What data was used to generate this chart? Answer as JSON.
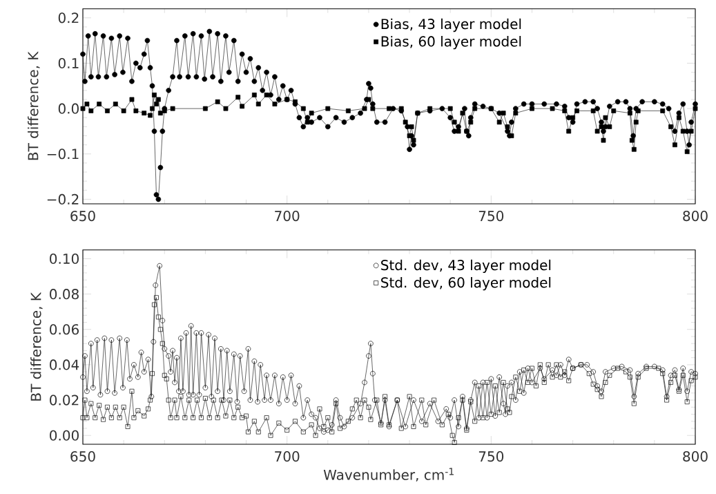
{
  "chart_data": [
    {
      "type": "line",
      "ylabel": "BT difference, K",
      "xlim": [
        650,
        800
      ],
      "xticks": [
        650,
        700,
        750,
        800
      ],
      "ylim": [
        -0.21,
        0.22
      ],
      "yticks": [
        {
          "value": -0.2,
          "label": "−0.2"
        },
        {
          "value": -0.1,
          "label": "−0.1"
        },
        {
          "value": 0,
          "label": "0.0"
        },
        {
          "value": 0.1,
          "label": "0.1"
        },
        {
          "value": 0.2,
          "label": "0.2"
        }
      ],
      "legend": "top",
      "grid": false,
      "line_style": "solid",
      "series": [
        {
          "name": "Bias, 43 layer model",
          "color": "#000000",
          "marker": "circle",
          "x": [
            650,
            650.5,
            651.3,
            652,
            653,
            653.8,
            655,
            655.8,
            657,
            657.8,
            659,
            659.8,
            661,
            662,
            663,
            664,
            665,
            665.8,
            666.5,
            667,
            667.5,
            668,
            668.5,
            669,
            669.5,
            670,
            671,
            672,
            673,
            673.7,
            675,
            675.8,
            677,
            677.8,
            679,
            679.8,
            681,
            681.8,
            683,
            683.8,
            685,
            685.8,
            687,
            688,
            689,
            690,
            691,
            692,
            693,
            694,
            695,
            696,
            697,
            698,
            699,
            700,
            701,
            702,
            703,
            704,
            705,
            706,
            708,
            710,
            712,
            714,
            716,
            718,
            719.5,
            720,
            720.5,
            721,
            722,
            724,
            726,
            728,
            729.5,
            730,
            730.5,
            731,
            732,
            735,
            738,
            740,
            741,
            742,
            743.5,
            744,
            744.5,
            745,
            746,
            748,
            750,
            752,
            754,
            754.5,
            755,
            756,
            758,
            760,
            763,
            766,
            768,
            769,
            770,
            771,
            773,
            775,
            776,
            777,
            777.5,
            778,
            779,
            781,
            783,
            784,
            784.8,
            785.5,
            787,
            790,
            792,
            793.5,
            795,
            796,
            797,
            798,
            798.5,
            799,
            800
          ],
          "values": [
            0.12,
            0.06,
            0.16,
            0.07,
            0.165,
            0.07,
            0.16,
            0.07,
            0.155,
            0.075,
            0.16,
            0.08,
            0.155,
            0.06,
            0.1,
            0.09,
            0.12,
            0.15,
            0.09,
            0.05,
            -0.05,
            -0.19,
            -0.2,
            -0.13,
            -0.05,
            0.0,
            0.04,
            0.07,
            0.15,
            0.07,
            0.16,
            0.07,
            0.165,
            0.07,
            0.16,
            0.065,
            0.17,
            0.07,
            0.165,
            0.06,
            0.16,
            0.08,
            0.15,
            0.06,
            0.12,
            0.08,
            0.11,
            0.06,
            0.09,
            0.04,
            0.08,
            0.03,
            0.07,
            0.02,
            0.05,
            0.02,
            0.04,
            0.01,
            -0.02,
            -0.04,
            -0.02,
            -0.03,
            -0.02,
            -0.04,
            -0.02,
            -0.03,
            -0.02,
            -0.01,
            0.02,
            0.055,
            0.045,
            0.01,
            -0.03,
            -0.03,
            0.0,
            -0.005,
            -0.04,
            -0.09,
            -0.06,
            -0.08,
            -0.01,
            -0.005,
            0.0,
            -0.02,
            -0.05,
            -0.04,
            0.0,
            -0.05,
            -0.06,
            -0.02,
            0.01,
            0.005,
            0.0,
            -0.01,
            -0.05,
            -0.06,
            -0.03,
            0.0,
            0.01,
            0.01,
            0.01,
            0.01,
            0.005,
            -0.02,
            -0.03,
            0.01,
            0.015,
            0.015,
            0.0,
            -0.03,
            -0.05,
            -0.04,
            0.005,
            0.015,
            0.015,
            0.0,
            -0.06,
            0.0,
            0.015,
            0.015,
            0.01,
            0.0,
            -0.05,
            -0.01,
            0.01,
            -0.05,
            -0.08,
            -0.03,
            0.01
          ]
        },
        {
          "name": "Bias, 60 layer model",
          "color": "#000000",
          "marker": "square",
          "x": [
            650,
            651,
            652,
            654,
            656,
            658,
            660,
            662,
            663,
            665,
            666.5,
            667,
            667.5,
            668,
            668.5,
            669,
            670,
            672,
            680,
            683,
            685,
            688,
            689,
            692,
            693,
            695,
            697,
            700,
            702,
            704,
            705,
            706,
            710,
            715,
            719,
            720,
            721,
            725,
            728,
            729,
            730,
            730.5,
            731,
            732,
            735,
            740,
            741,
            742,
            743,
            744,
            745,
            746,
            750,
            752,
            753,
            754,
            755,
            756,
            760,
            765,
            768,
            769,
            770,
            771,
            775,
            776,
            777,
            777.5,
            778,
            779,
            780,
            784,
            784.5,
            785,
            785.5,
            786,
            792,
            794,
            795,
            796,
            797,
            798,
            799,
            800
          ],
          "values": [
            0.0,
            0.01,
            -0.005,
            0.01,
            -0.005,
            0.01,
            -0.005,
            0.02,
            -0.005,
            -0.01,
            -0.015,
            0.0,
            0.03,
            0.01,
            0.02,
            -0.01,
            -0.005,
            0.0,
            0.0,
            0.015,
            0.0,
            0.025,
            0.005,
            0.03,
            0.01,
            0.03,
            0.01,
            0.02,
            0.015,
            0.0,
            -0.03,
            -0.01,
            0.0,
            -0.005,
            0.0,
            0.02,
            0.0,
            0.0,
            0.0,
            -0.03,
            -0.06,
            -0.04,
            -0.07,
            -0.01,
            0.0,
            0.0,
            -0.03,
            -0.05,
            -0.01,
            -0.05,
            -0.03,
            0.0,
            0.0,
            -0.03,
            -0.01,
            -0.04,
            -0.06,
            -0.01,
            0.0,
            0.0,
            -0.005,
            -0.05,
            -0.02,
            -0.005,
            -0.005,
            -0.05,
            -0.04,
            -0.07,
            -0.02,
            -0.04,
            -0.005,
            -0.01,
            -0.07,
            -0.09,
            -0.03,
            -0.005,
            -0.005,
            -0.04,
            -0.08,
            -0.02,
            -0.05,
            -0.095,
            -0.05,
            0.0
          ]
        }
      ]
    },
    {
      "type": "line",
      "xlabel": "Wavenumber, cm$^{-1}$",
      "ylabel": "BT difference, K",
      "xlim": [
        650,
        800
      ],
      "xticks": [
        650,
        700,
        750,
        800
      ],
      "ylim": [
        -0.005,
        0.105
      ],
      "yticks": [
        {
          "value": 0,
          "label": "0.00"
        },
        {
          "value": 0.02,
          "label": "0.02"
        },
        {
          "value": 0.04,
          "label": "0.04"
        },
        {
          "value": 0.06,
          "label": "0.06"
        },
        {
          "value": 0.08,
          "label": "0.08"
        },
        {
          "value": 0.1,
          "label": "0.10"
        }
      ],
      "legend": "top",
      "grid": false,
      "line_style": "solid",
      "series": [
        {
          "name": "Std. dev, 43 layer model",
          "color": "#000000",
          "marker": "circle",
          "x": [
            650,
            650.5,
            651,
            652,
            652.5,
            653.5,
            654.3,
            655.3,
            656,
            657,
            657.8,
            659,
            659.8,
            660.8,
            661.5,
            662.5,
            663.5,
            664.3,
            665,
            666,
            666.8,
            667.3,
            667.8,
            668.8,
            669.5,
            670,
            671,
            671.5,
            672,
            672.5,
            673,
            673.5,
            674,
            674.5,
            675.3,
            676,
            676.5,
            677,
            677.8,
            678.5,
            679,
            680,
            680.8,
            681.5,
            682.3,
            683,
            683.8,
            684.5,
            685.3,
            686,
            687,
            687.8,
            688.5,
            689.5,
            690.5,
            691,
            692,
            692.8,
            693.5,
            694.5,
            695,
            696,
            697,
            698,
            699,
            700,
            701,
            702,
            703,
            704,
            705,
            706,
            707,
            708,
            709,
            710,
            711,
            712,
            713,
            714,
            716,
            718,
            719,
            720,
            720.5,
            721,
            721.5,
            723,
            724,
            725,
            727,
            729,
            731,
            733,
            735,
            737,
            739,
            740,
            741,
            742,
            743,
            744,
            745,
            746,
            747,
            748,
            749,
            750,
            751,
            752,
            753,
            753.5,
            754,
            755,
            756,
            757,
            758,
            759,
            760,
            762,
            763,
            765,
            766,
            767,
            768,
            769,
            770,
            772,
            773.5,
            775,
            776,
            777,
            778,
            780,
            782,
            784,
            785,
            786,
            788,
            790,
            792,
            793,
            794,
            795,
            796,
            797,
            798,
            799,
            800
          ],
          "values": [
            0.033,
            0.045,
            0.025,
            0.052,
            0.027,
            0.054,
            0.023,
            0.055,
            0.025,
            0.054,
            0.024,
            0.055,
            0.027,
            0.054,
            0.032,
            0.04,
            0.033,
            0.047,
            0.036,
            0.043,
            0.022,
            0.053,
            0.085,
            0.096,
            0.065,
            0.049,
            0.045,
            0.036,
            0.048,
            0.03,
            0.044,
            0.025,
            0.055,
            0.025,
            0.058,
            0.023,
            0.062,
            0.023,
            0.058,
            0.023,
            0.058,
            0.027,
            0.057,
            0.022,
            0.055,
            0.025,
            0.049,
            0.02,
            0.048,
            0.025,
            0.046,
            0.019,
            0.045,
            0.025,
            0.049,
            0.02,
            0.042,
            0.019,
            0.04,
            0.02,
            0.034,
            0.02,
            0.034,
            0.018,
            0.033,
            0.02,
            0.034,
            0.018,
            0.028,
            0.01,
            0.02,
            0.012,
            0.01,
            0.004,
            0.002,
            0.003,
            0.006,
            0.02,
            0.01,
            0.005,
            0.01,
            0.018,
            0.03,
            0.045,
            0.052,
            0.035,
            0.02,
            0.007,
            0.02,
            0.005,
            0.02,
            0.005,
            0.02,
            0.008,
            0.018,
            0.008,
            0.015,
            0.01,
            0.02,
            0.005,
            0.022,
            0.004,
            0.02,
            0.03,
            0.01,
            0.03,
            0.01,
            0.032,
            0.011,
            0.033,
            0.018,
            0.012,
            0.028,
            0.03,
            0.02,
            0.036,
            0.024,
            0.038,
            0.03,
            0.038,
            0.032,
            0.037,
            0.034,
            0.04,
            0.034,
            0.043,
            0.038,
            0.04,
            0.04,
            0.036,
            0.028,
            0.025,
            0.036,
            0.038,
            0.039,
            0.037,
            0.022,
            0.035,
            0.039,
            0.039,
            0.037,
            0.022,
            0.034,
            0.037,
            0.026,
            0.038,
            0.025,
            0.036,
            0.035
          ]
        },
        {
          "name": "Std. dev, 60 layer model",
          "color": "#000000",
          "marker": "square",
          "x": [
            650,
            650.5,
            651,
            652,
            653,
            654,
            655,
            656,
            657,
            658,
            659,
            660,
            661,
            662,
            662.5,
            663.5,
            665,
            666,
            666.5,
            667,
            667.5,
            668,
            668.5,
            669,
            669.5,
            670,
            670.5,
            671,
            671.5,
            672.5,
            673,
            674,
            675,
            676,
            677,
            678,
            679,
            680,
            681,
            682,
            683,
            684,
            685,
            686,
            687,
            688,
            689,
            690,
            690.5,
            692,
            693,
            695,
            696,
            698,
            700,
            702,
            704,
            706,
            707,
            708,
            709,
            710,
            711,
            712,
            713,
            715,
            716,
            717,
            718,
            719,
            720,
            720.5,
            722,
            723,
            724,
            725,
            727,
            728,
            730,
            731,
            733,
            734,
            736,
            738,
            739.5,
            740.5,
            741,
            742,
            743,
            744,
            745,
            746,
            747,
            748,
            749,
            750,
            751,
            752,
            753,
            754,
            754.5,
            755,
            756,
            757,
            758,
            759,
            760,
            761,
            762,
            763,
            764,
            765,
            766,
            767,
            768,
            769,
            770,
            772,
            774,
            775,
            776,
            777,
            778,
            779,
            781,
            783,
            784,
            785,
            786,
            788,
            791,
            792,
            793,
            794,
            795,
            796,
            797,
            798,
            799,
            800
          ],
          "values": [
            0.01,
            0.02,
            0.01,
            0.018,
            0.01,
            0.017,
            0.009,
            0.016,
            0.01,
            0.016,
            0.01,
            0.016,
            0.005,
            0.025,
            0.01,
            0.014,
            0.011,
            0.015,
            0.02,
            0.035,
            0.074,
            0.078,
            0.067,
            0.06,
            0.052,
            0.034,
            0.032,
            0.02,
            0.01,
            0.02,
            0.01,
            0.022,
            0.01,
            0.02,
            0.01,
            0.02,
            0.01,
            0.021,
            0.01,
            0.02,
            0.01,
            0.02,
            0.011,
            0.02,
            0.01,
            0.016,
            0.01,
            0.011,
            0.002,
            0.008,
            0.002,
            0.01,
            0.0,
            0.007,
            0.003,
            0.008,
            0.002,
            0.006,
            0.0,
            0.015,
            0.005,
            0.01,
            0.002,
            0.018,
            0.004,
            0.008,
            0.015,
            0.02,
            0.01,
            0.02,
            0.016,
            0.009,
            0.02,
            0.006,
            0.022,
            0.006,
            0.02,
            0.004,
            0.022,
            0.005,
            0.02,
            0.006,
            0.02,
            0.006,
            0.012,
            0.0,
            -0.004,
            0.01,
            0.02,
            0.003,
            0.019,
            0.008,
            0.028,
            0.01,
            0.03,
            0.012,
            0.028,
            0.013,
            0.03,
            0.015,
            0.013,
            0.022,
            0.033,
            0.025,
            0.037,
            0.03,
            0.038,
            0.028,
            0.04,
            0.03,
            0.04,
            0.033,
            0.04,
            0.033,
            0.036,
            0.031,
            0.038,
            0.04,
            0.035,
            0.029,
            0.026,
            0.022,
            0.03,
            0.034,
            0.038,
            0.036,
            0.033,
            0.018,
            0.033,
            0.038,
            0.038,
            0.035,
            0.02,
            0.03,
            0.034,
            0.025,
            0.034,
            0.019,
            0.031,
            0.033
          ]
        }
      ]
    }
  ]
}
